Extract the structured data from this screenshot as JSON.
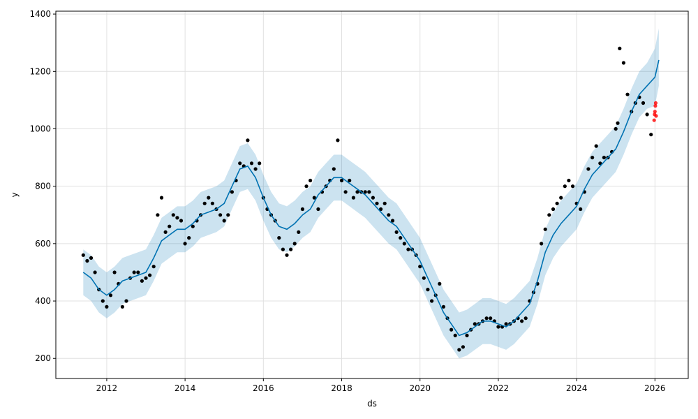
{
  "chart_data": {
    "type": "line",
    "title": "",
    "xlabel": "ds",
    "ylabel": "y",
    "xlim": [
      2010.7,
      2026.85
    ],
    "ylim": [
      130,
      1410
    ],
    "grid": true,
    "x_ticks": [
      2012,
      2014,
      2016,
      2018,
      2020,
      2022,
      2024,
      2026
    ],
    "x_tick_labels": [
      "2012",
      "2014",
      "2016",
      "2018",
      "2020",
      "2022",
      "2024",
      "2026"
    ],
    "y_ticks": [
      200,
      400,
      600,
      800,
      1000,
      1200,
      1400
    ],
    "y_tick_labels": [
      "200",
      "400",
      "600",
      "800",
      "1000",
      "1200",
      "1400"
    ],
    "colors": {
      "forecast_line": "#0072B2",
      "uncertainty_band": "#0072B2",
      "observed_points": "#000000",
      "test_points": "#ff0000",
      "grid": "#e0e0e0"
    },
    "series": [
      {
        "role": "forecast",
        "x": [
          2011.4,
          2011.6,
          2011.8,
          2012.0,
          2012.2,
          2012.4,
          2012.6,
          2012.8,
          2013.0,
          2013.2,
          2013.4,
          2013.6,
          2013.8,
          2014.0,
          2014.2,
          2014.4,
          2014.6,
          2014.8,
          2015.0,
          2015.2,
          2015.4,
          2015.6,
          2015.8,
          2016.0,
          2016.2,
          2016.4,
          2016.6,
          2016.8,
          2017.0,
          2017.2,
          2017.4,
          2017.6,
          2017.8,
          2018.0,
          2018.2,
          2018.4,
          2018.6,
          2018.8,
          2019.0,
          2019.2,
          2019.4,
          2019.6,
          2019.8,
          2020.0,
          2020.2,
          2020.4,
          2020.6,
          2020.8,
          2021.0,
          2021.2,
          2021.4,
          2021.6,
          2021.8,
          2022.0,
          2022.2,
          2022.4,
          2022.6,
          2022.8,
          2023.0,
          2023.2,
          2023.4,
          2023.6,
          2023.8,
          2024.0,
          2024.2,
          2024.4,
          2024.6,
          2024.8,
          2025.0,
          2025.2,
          2025.4,
          2025.6,
          2025.8,
          2026.0,
          2026.1
        ],
        "yhat": [
          500,
          480,
          440,
          420,
          440,
          470,
          480,
          490,
          500,
          550,
          610,
          630,
          650,
          650,
          670,
          700,
          710,
          720,
          740,
          800,
          860,
          870,
          830,
          760,
          700,
          660,
          650,
          670,
          700,
          720,
          770,
          800,
          830,
          830,
          810,
          790,
          770,
          740,
          710,
          680,
          660,
          620,
          580,
          540,
          480,
          420,
          360,
          320,
          280,
          290,
          310,
          330,
          330,
          320,
          310,
          330,
          360,
          390,
          470,
          570,
          630,
          670,
          700,
          730,
          790,
          840,
          870,
          900,
          930,
          990,
          1060,
          1120,
          1150,
          1180,
          1240
        ],
        "lower": [
          420,
          400,
          360,
          340,
          360,
          390,
          400,
          410,
          420,
          470,
          530,
          550,
          570,
          570,
          590,
          620,
          630,
          640,
          660,
          720,
          780,
          790,
          750,
          680,
          620,
          580,
          570,
          590,
          620,
          640,
          690,
          720,
          750,
          750,
          730,
          710,
          690,
          660,
          630,
          600,
          580,
          540,
          500,
          460,
          400,
          340,
          280,
          240,
          200,
          210,
          230,
          250,
          250,
          240,
          230,
          250,
          280,
          310,
          390,
          490,
          550,
          590,
          620,
          650,
          710,
          760,
          790,
          820,
          850,
          910,
          980,
          1040,
          1070,
          1080,
          1150
        ],
        "upper": [
          580,
          560,
          520,
          500,
          520,
          550,
          560,
          570,
          580,
          630,
          690,
          710,
          730,
          730,
          750,
          780,
          790,
          800,
          820,
          880,
          940,
          950,
          910,
          840,
          780,
          740,
          730,
          750,
          780,
          800,
          850,
          880,
          910,
          910,
          890,
          870,
          850,
          820,
          790,
          760,
          740,
          700,
          660,
          620,
          560,
          500,
          440,
          400,
          360,
          370,
          390,
          410,
          410,
          400,
          390,
          410,
          440,
          470,
          550,
          650,
          710,
          750,
          780,
          810,
          870,
          920,
          950,
          980,
          1010,
          1070,
          1140,
          1200,
          1230,
          1280,
          1350
        ]
      },
      {
        "role": "observed",
        "x": [
          2011.4,
          2011.5,
          2011.6,
          2011.7,
          2011.8,
          2011.9,
          2012.0,
          2012.1,
          2012.2,
          2012.3,
          2012.4,
          2012.5,
          2012.6,
          2012.7,
          2012.8,
          2012.9,
          2013.0,
          2013.1,
          2013.2,
          2013.3,
          2013.4,
          2013.5,
          2013.6,
          2013.7,
          2013.8,
          2013.9,
          2014.0,
          2014.1,
          2014.2,
          2014.3,
          2014.4,
          2014.5,
          2014.6,
          2014.7,
          2014.8,
          2014.9,
          2015.0,
          2015.1,
          2015.2,
          2015.3,
          2015.4,
          2015.5,
          2015.6,
          2015.7,
          2015.8,
          2015.9,
          2016.0,
          2016.1,
          2016.2,
          2016.3,
          2016.4,
          2016.5,
          2016.6,
          2016.7,
          2016.8,
          2016.9,
          2017.0,
          2017.1,
          2017.2,
          2017.3,
          2017.4,
          2017.5,
          2017.6,
          2017.7,
          2017.8,
          2017.9,
          2018.0,
          2018.1,
          2018.2,
          2018.3,
          2018.4,
          2018.5,
          2018.6,
          2018.7,
          2018.8,
          2018.9,
          2019.0,
          2019.1,
          2019.2,
          2019.3,
          2019.4,
          2019.5,
          2019.6,
          2019.7,
          2019.8,
          2019.9,
          2020.0,
          2020.1,
          2020.2,
          2020.3,
          2020.4,
          2020.5,
          2020.6,
          2020.7,
          2020.8,
          2020.9,
          2021.0,
          2021.1,
          2021.2,
          2021.3,
          2021.4,
          2021.5,
          2021.6,
          2021.7,
          2021.8,
          2021.9,
          2022.0,
          2022.1,
          2022.2,
          2022.3,
          2022.4,
          2022.5,
          2022.6,
          2022.7,
          2022.8,
          2022.9,
          2023.0,
          2023.1,
          2023.2,
          2023.3,
          2023.4,
          2023.5,
          2023.6,
          2023.7,
          2023.8,
          2023.9,
          2024.0,
          2024.1,
          2024.2,
          2024.3,
          2024.4,
          2024.5,
          2024.6,
          2024.7,
          2024.8,
          2024.9,
          2025.0,
          2025.05,
          2025.1,
          2025.2,
          2025.3,
          2025.4,
          2025.5,
          2025.6,
          2025.7,
          2025.8,
          2025.9
        ],
        "y": [
          560,
          540,
          550,
          500,
          440,
          400,
          380,
          420,
          500,
          460,
          380,
          400,
          480,
          500,
          500,
          470,
          480,
          490,
          520,
          700,
          760,
          640,
          660,
          700,
          690,
          680,
          600,
          620,
          660,
          680,
          700,
          740,
          760,
          740,
          720,
          700,
          680,
          700,
          780,
          820,
          880,
          870,
          960,
          880,
          860,
          880,
          760,
          720,
          700,
          680,
          620,
          580,
          560,
          580,
          600,
          640,
          720,
          800,
          820,
          760,
          720,
          780,
          800,
          820,
          860,
          960,
          820,
          780,
          820,
          760,
          780,
          780,
          780,
          780,
          760,
          740,
          720,
          740,
          700,
          680,
          640,
          620,
          600,
          580,
          580,
          560,
          520,
          480,
          440,
          400,
          420,
          460,
          380,
          340,
          300,
          280,
          230,
          240,
          280,
          300,
          320,
          320,
          330,
          340,
          340,
          330,
          310,
          310,
          320,
          320,
          330,
          340,
          330,
          340,
          400,
          430,
          460,
          600,
          650,
          700,
          720,
          740,
          760,
          800,
          820,
          800,
          740,
          720,
          780,
          860,
          900,
          940,
          880,
          900,
          900,
          920,
          1000,
          1020,
          1280,
          1230,
          1120,
          1060,
          1090,
          1110,
          1090,
          1050,
          980
        ]
      },
      {
        "role": "test",
        "x": [
          2025.98,
          2025.99,
          2026.0,
          2026.01,
          2026.02,
          2026.03
        ],
        "y": [
          1030,
          1050,
          1060,
          1080,
          1090,
          1045
        ]
      }
    ]
  }
}
